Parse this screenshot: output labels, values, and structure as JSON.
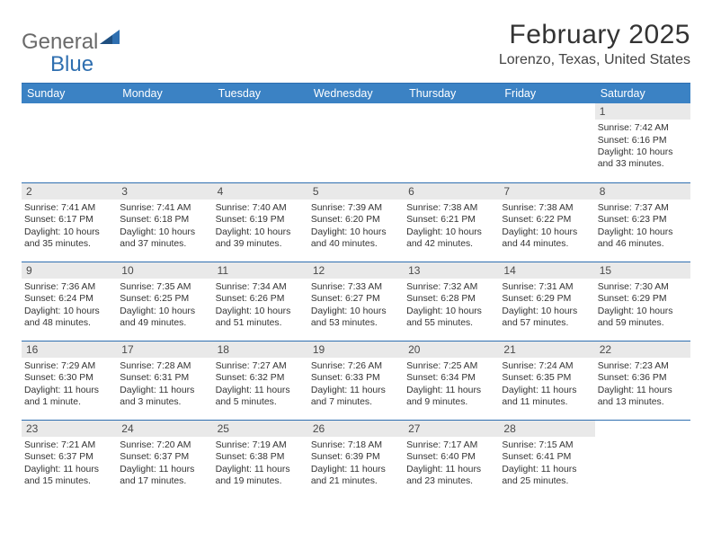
{
  "logo": {
    "part1": "General",
    "part2": "Blue"
  },
  "title": "February 2025",
  "location": "Lorenzo, Texas, United States",
  "colors": {
    "header_bg": "#3b82c4",
    "header_text": "#ffffff",
    "border": "#2f6fb0",
    "daynum_bg": "#e9e9e9",
    "text": "#333333",
    "logo_gray": "#6a6a6a",
    "logo_blue": "#2f6fb0"
  },
  "day_headers": [
    "Sunday",
    "Monday",
    "Tuesday",
    "Wednesday",
    "Thursday",
    "Friday",
    "Saturday"
  ],
  "weeks": [
    [
      {
        "n": "",
        "sunrise": "",
        "sunset": "",
        "daylight": ""
      },
      {
        "n": "",
        "sunrise": "",
        "sunset": "",
        "daylight": ""
      },
      {
        "n": "",
        "sunrise": "",
        "sunset": "",
        "daylight": ""
      },
      {
        "n": "",
        "sunrise": "",
        "sunset": "",
        "daylight": ""
      },
      {
        "n": "",
        "sunrise": "",
        "sunset": "",
        "daylight": ""
      },
      {
        "n": "",
        "sunrise": "",
        "sunset": "",
        "daylight": ""
      },
      {
        "n": "1",
        "sunrise": "Sunrise: 7:42 AM",
        "sunset": "Sunset: 6:16 PM",
        "daylight": "Daylight: 10 hours and 33 minutes."
      }
    ],
    [
      {
        "n": "2",
        "sunrise": "Sunrise: 7:41 AM",
        "sunset": "Sunset: 6:17 PM",
        "daylight": "Daylight: 10 hours and 35 minutes."
      },
      {
        "n": "3",
        "sunrise": "Sunrise: 7:41 AM",
        "sunset": "Sunset: 6:18 PM",
        "daylight": "Daylight: 10 hours and 37 minutes."
      },
      {
        "n": "4",
        "sunrise": "Sunrise: 7:40 AM",
        "sunset": "Sunset: 6:19 PM",
        "daylight": "Daylight: 10 hours and 39 minutes."
      },
      {
        "n": "5",
        "sunrise": "Sunrise: 7:39 AM",
        "sunset": "Sunset: 6:20 PM",
        "daylight": "Daylight: 10 hours and 40 minutes."
      },
      {
        "n": "6",
        "sunrise": "Sunrise: 7:38 AM",
        "sunset": "Sunset: 6:21 PM",
        "daylight": "Daylight: 10 hours and 42 minutes."
      },
      {
        "n": "7",
        "sunrise": "Sunrise: 7:38 AM",
        "sunset": "Sunset: 6:22 PM",
        "daylight": "Daylight: 10 hours and 44 minutes."
      },
      {
        "n": "8",
        "sunrise": "Sunrise: 7:37 AM",
        "sunset": "Sunset: 6:23 PM",
        "daylight": "Daylight: 10 hours and 46 minutes."
      }
    ],
    [
      {
        "n": "9",
        "sunrise": "Sunrise: 7:36 AM",
        "sunset": "Sunset: 6:24 PM",
        "daylight": "Daylight: 10 hours and 48 minutes."
      },
      {
        "n": "10",
        "sunrise": "Sunrise: 7:35 AM",
        "sunset": "Sunset: 6:25 PM",
        "daylight": "Daylight: 10 hours and 49 minutes."
      },
      {
        "n": "11",
        "sunrise": "Sunrise: 7:34 AM",
        "sunset": "Sunset: 6:26 PM",
        "daylight": "Daylight: 10 hours and 51 minutes."
      },
      {
        "n": "12",
        "sunrise": "Sunrise: 7:33 AM",
        "sunset": "Sunset: 6:27 PM",
        "daylight": "Daylight: 10 hours and 53 minutes."
      },
      {
        "n": "13",
        "sunrise": "Sunrise: 7:32 AM",
        "sunset": "Sunset: 6:28 PM",
        "daylight": "Daylight: 10 hours and 55 minutes."
      },
      {
        "n": "14",
        "sunrise": "Sunrise: 7:31 AM",
        "sunset": "Sunset: 6:29 PM",
        "daylight": "Daylight: 10 hours and 57 minutes."
      },
      {
        "n": "15",
        "sunrise": "Sunrise: 7:30 AM",
        "sunset": "Sunset: 6:29 PM",
        "daylight": "Daylight: 10 hours and 59 minutes."
      }
    ],
    [
      {
        "n": "16",
        "sunrise": "Sunrise: 7:29 AM",
        "sunset": "Sunset: 6:30 PM",
        "daylight": "Daylight: 11 hours and 1 minute."
      },
      {
        "n": "17",
        "sunrise": "Sunrise: 7:28 AM",
        "sunset": "Sunset: 6:31 PM",
        "daylight": "Daylight: 11 hours and 3 minutes."
      },
      {
        "n": "18",
        "sunrise": "Sunrise: 7:27 AM",
        "sunset": "Sunset: 6:32 PM",
        "daylight": "Daylight: 11 hours and 5 minutes."
      },
      {
        "n": "19",
        "sunrise": "Sunrise: 7:26 AM",
        "sunset": "Sunset: 6:33 PM",
        "daylight": "Daylight: 11 hours and 7 minutes."
      },
      {
        "n": "20",
        "sunrise": "Sunrise: 7:25 AM",
        "sunset": "Sunset: 6:34 PM",
        "daylight": "Daylight: 11 hours and 9 minutes."
      },
      {
        "n": "21",
        "sunrise": "Sunrise: 7:24 AM",
        "sunset": "Sunset: 6:35 PM",
        "daylight": "Daylight: 11 hours and 11 minutes."
      },
      {
        "n": "22",
        "sunrise": "Sunrise: 7:23 AM",
        "sunset": "Sunset: 6:36 PM",
        "daylight": "Daylight: 11 hours and 13 minutes."
      }
    ],
    [
      {
        "n": "23",
        "sunrise": "Sunrise: 7:21 AM",
        "sunset": "Sunset: 6:37 PM",
        "daylight": "Daylight: 11 hours and 15 minutes."
      },
      {
        "n": "24",
        "sunrise": "Sunrise: 7:20 AM",
        "sunset": "Sunset: 6:37 PM",
        "daylight": "Daylight: 11 hours and 17 minutes."
      },
      {
        "n": "25",
        "sunrise": "Sunrise: 7:19 AM",
        "sunset": "Sunset: 6:38 PM",
        "daylight": "Daylight: 11 hours and 19 minutes."
      },
      {
        "n": "26",
        "sunrise": "Sunrise: 7:18 AM",
        "sunset": "Sunset: 6:39 PM",
        "daylight": "Daylight: 11 hours and 21 minutes."
      },
      {
        "n": "27",
        "sunrise": "Sunrise: 7:17 AM",
        "sunset": "Sunset: 6:40 PM",
        "daylight": "Daylight: 11 hours and 23 minutes."
      },
      {
        "n": "28",
        "sunrise": "Sunrise: 7:15 AM",
        "sunset": "Sunset: 6:41 PM",
        "daylight": "Daylight: 11 hours and 25 minutes."
      },
      {
        "n": "",
        "sunrise": "",
        "sunset": "",
        "daylight": ""
      }
    ]
  ]
}
